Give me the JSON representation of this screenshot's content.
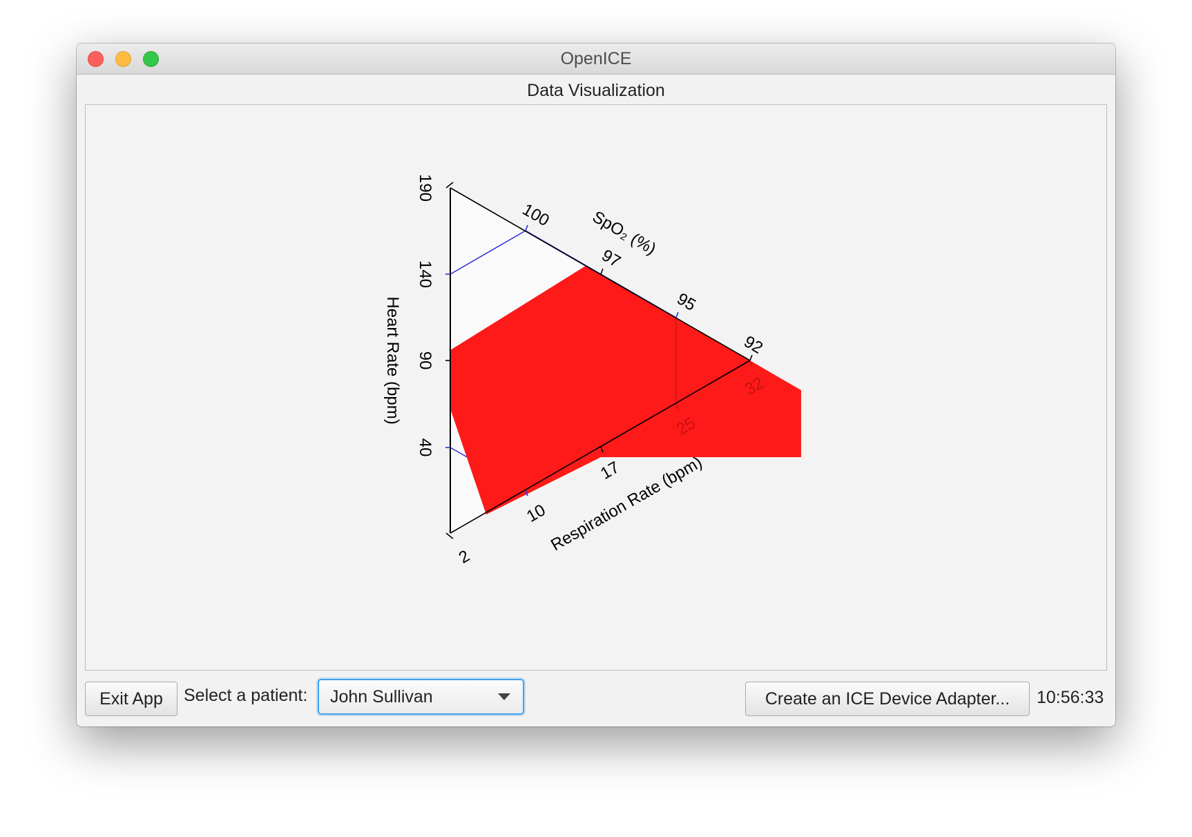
{
  "window": {
    "title": "OpenICE"
  },
  "section": {
    "title": "Data Visualization"
  },
  "footer": {
    "exit_label": "Exit App",
    "patient_label": "Select a patient:",
    "patient_selected": "John Sullivan",
    "create_label": "Create an ICE Device Adapter...",
    "clock": "10:56:33"
  },
  "colors": {
    "region": "#ff1a1a",
    "axis": "#000000",
    "guide": "#2b2bdc",
    "triangle_fill": "#fafafa"
  },
  "chart_data": {
    "type": "radar",
    "axes": [
      {
        "name": "Heart Rate (bpm)",
        "ticks": [
          "190",
          "140",
          "90",
          "40"
        ]
      },
      {
        "name": "SpO₂ (%)",
        "ticks": [
          "100",
          "97",
          "95",
          "92"
        ]
      },
      {
        "name": "Respiration Rate (bpm)",
        "ticks": [
          "2",
          "10",
          "17",
          "25",
          "32"
        ]
      }
    ]
  }
}
